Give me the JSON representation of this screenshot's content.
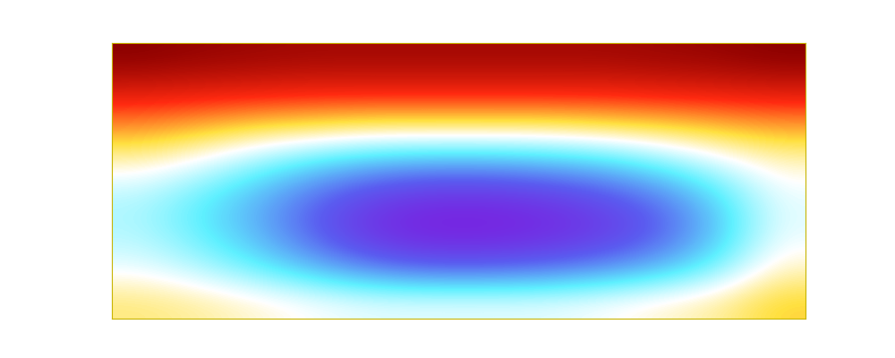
{
  "chart_data": {
    "type": "heatmap",
    "tick_labels": false,
    "cells": [
      [
        1.0,
        0.98,
        0.97,
        0.96,
        0.96,
        0.96,
        0.96,
        0.96,
        0.96,
        0.97,
        0.98,
        1.0
      ],
      [
        0.85,
        0.84,
        0.83,
        0.82,
        0.82,
        0.82,
        0.82,
        0.82,
        0.82,
        0.83,
        0.84,
        0.85
      ],
      [
        0.7,
        0.66,
        0.62,
        0.6,
        0.58,
        0.58,
        0.58,
        0.58,
        0.6,
        0.62,
        0.65,
        0.68
      ],
      [
        0.55,
        0.5,
        0.42,
        0.35,
        0.3,
        0.28,
        0.28,
        0.3,
        0.33,
        0.4,
        0.48,
        0.55
      ],
      [
        0.45,
        0.38,
        0.3,
        0.2,
        0.12,
        0.08,
        0.08,
        0.1,
        0.15,
        0.22,
        0.35,
        0.5
      ],
      [
        0.45,
        0.38,
        0.3,
        0.18,
        0.08,
        0.04,
        0.04,
        0.06,
        0.1,
        0.18,
        0.32,
        0.5
      ],
      [
        0.5,
        0.45,
        0.38,
        0.3,
        0.22,
        0.18,
        0.18,
        0.2,
        0.24,
        0.3,
        0.4,
        0.55
      ],
      [
        0.6,
        0.58,
        0.55,
        0.52,
        0.5,
        0.5,
        0.5,
        0.5,
        0.52,
        0.55,
        0.58,
        0.65
      ]
    ]
  }
}
